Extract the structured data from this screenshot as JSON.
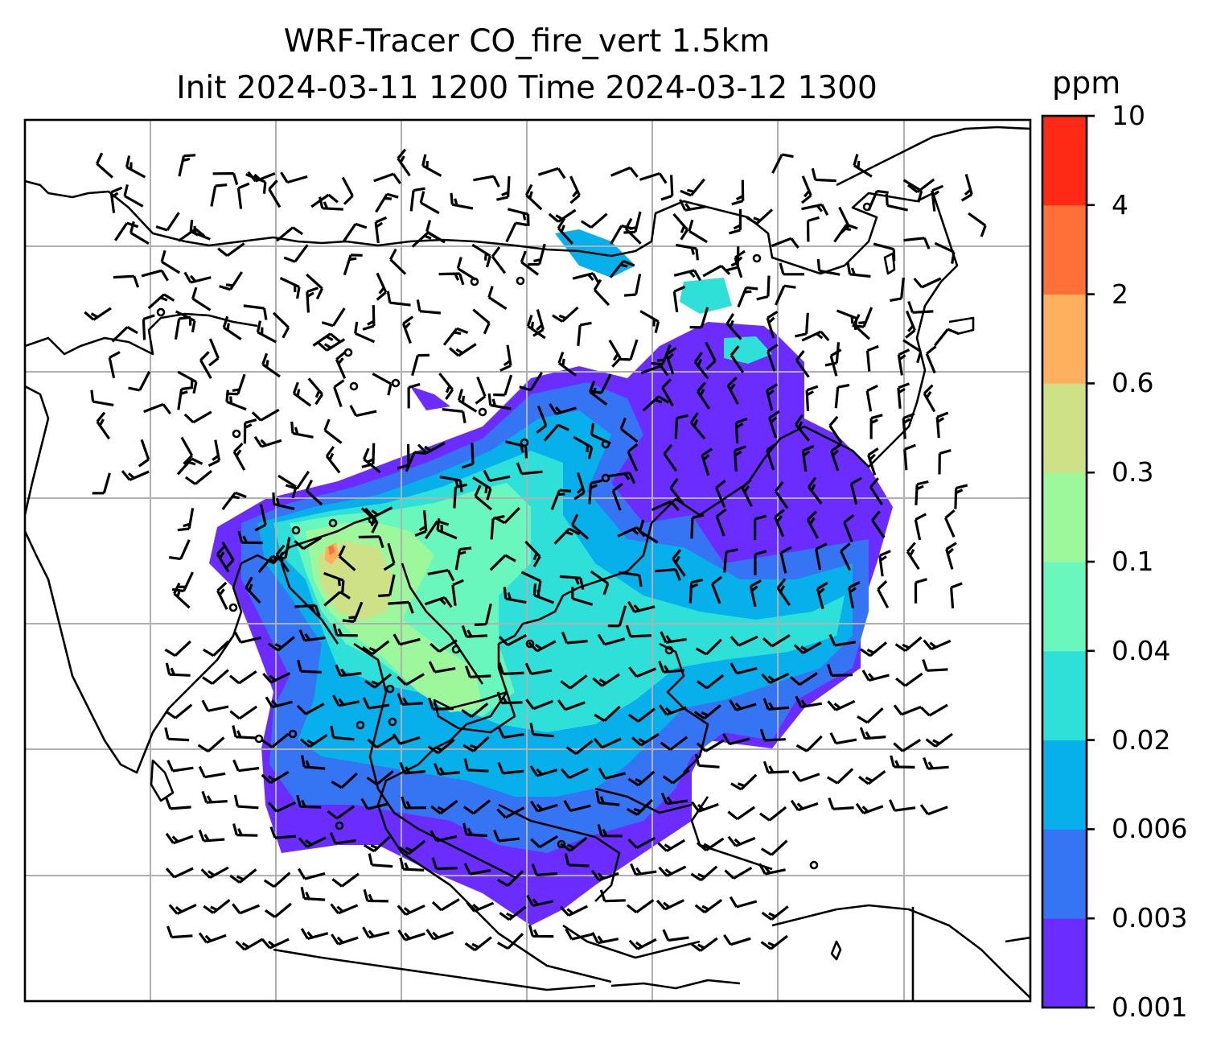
{
  "title": {
    "line1": "WRF-Tracer CO_fire_vert 1.5km",
    "line2": "Init 2024-03-11 1200 Time 2024-03-12 1300"
  },
  "colorbar": {
    "unit": "ppm",
    "levels": [
      "0.001",
      "0.003",
      "0.006",
      "0.02",
      "0.04",
      "0.1",
      "0.3",
      "0.6",
      "2",
      "4",
      "10"
    ],
    "colors": [
      "#6a2cff",
      "#3574f2",
      "#07b0ea",
      "#2ee0d7",
      "#6af7bd",
      "#9cf89a",
      "#cfe187",
      "#ffb05f",
      "#ff7038",
      "#ff2a16"
    ]
  },
  "map": {
    "background": "#ffffff",
    "grid_color": "#b0b0b0",
    "coastline_color": "#000000",
    "wind_barbs_shown": true
  }
}
